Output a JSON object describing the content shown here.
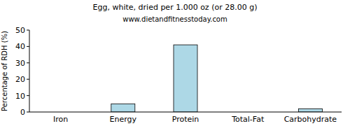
{
  "chart_data": {
    "type": "bar",
    "title": "Egg, white, dried per 1.000 oz (or 28.00 g)",
    "subtitle": "www.dietandfitnesstoday.com",
    "y_label": "Percentage of RDH (%)",
    "categories": [
      "Iron",
      "Energy",
      "Protein",
      "Total-Fat",
      "Carbohydrate"
    ],
    "values": [
      0,
      5,
      41,
      0,
      2
    ],
    "color": "#add8e6",
    "ylim": [
      0,
      50
    ],
    "yticks": [
      0,
      10,
      20,
      30,
      40,
      50
    ],
    "grid": false
  }
}
